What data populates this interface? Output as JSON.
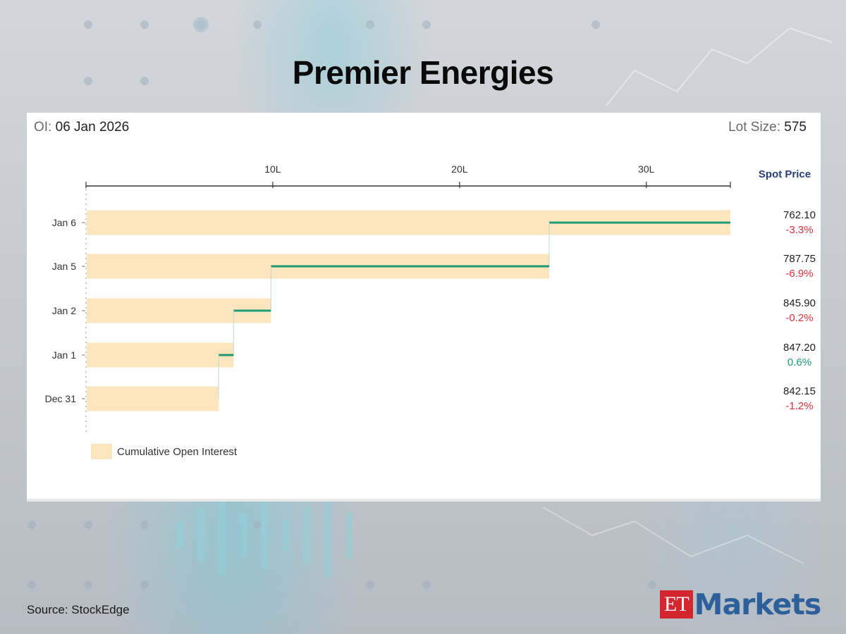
{
  "title": "Premier Energies",
  "header": {
    "oi_label": "OI:",
    "oi_date": "06 Jan 2026",
    "lot_size_label": "Lot Size:",
    "lot_size_value": "575"
  },
  "chart_data": {
    "type": "bar",
    "title": "Premier Energies",
    "categories": [
      "Jan 6",
      "Jan 5",
      "Jan 2",
      "Jan 1",
      "Dec 31"
    ],
    "x_tick_labels": [
      "10L",
      "20L",
      "30L"
    ],
    "x_ticks": [
      10,
      20,
      30
    ],
    "xlim": [
      0,
      34.5
    ],
    "x_unit": "L",
    "series": [
      {
        "name": "Cumulative Open Interest",
        "values": [
          34.5,
          24.8,
          9.9,
          7.9,
          7.1
        ],
        "color": "#fde5bd"
      }
    ],
    "oi_change_steps": [
      {
        "from": 24.8,
        "to": 34.5
      },
      {
        "from": 9.9,
        "to": 24.8
      },
      {
        "from": 7.9,
        "to": 9.9
      },
      {
        "from": 7.1,
        "to": 7.9
      }
    ],
    "step_color": "#1f9a77",
    "spot_price_header": "Spot Price",
    "spot_prices": [
      "762.10",
      "787.75",
      "845.90",
      "847.20",
      "842.15"
    ],
    "price_changes": [
      "-3.3%",
      "-6.9%",
      "-0.2%",
      "0.6%",
      "-1.2%"
    ],
    "negative_color": "#e0303a",
    "positive_color": "#1f9a77",
    "header_color": "#23407a",
    "legend_placement": "bottom-left",
    "grid": false
  },
  "footer": {
    "source": "Source:  StockEdge",
    "logo_et": "ET",
    "logo_markets": "Markets"
  }
}
